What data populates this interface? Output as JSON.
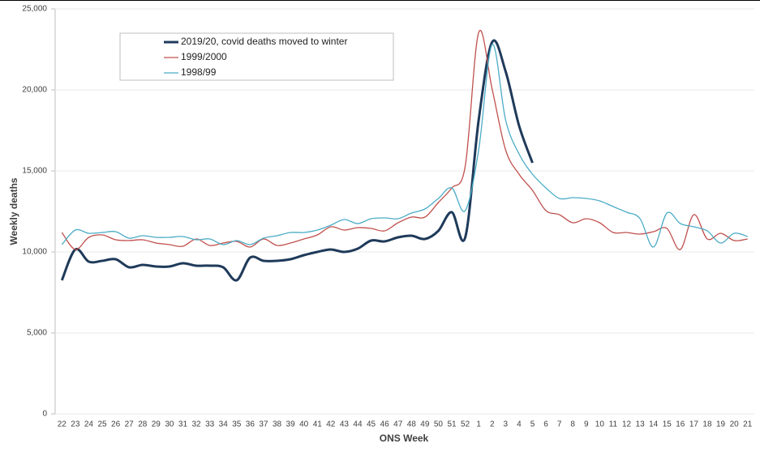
{
  "chart_data": {
    "type": "line",
    "xlabel": "ONS Week",
    "ylabel": "Weekly deaths",
    "categories": [
      "22",
      "23",
      "24",
      "25",
      "26",
      "27",
      "28",
      "29",
      "30",
      "31",
      "32",
      "33",
      "34",
      "35",
      "36",
      "37",
      "38",
      "39",
      "40",
      "41",
      "42",
      "43",
      "44",
      "45",
      "46",
      "47",
      "48",
      "49",
      "50",
      "51",
      "52",
      "1",
      "2",
      "3",
      "4",
      "5",
      "6",
      "7",
      "8",
      "9",
      "10",
      "11",
      "12",
      "13",
      "14",
      "15",
      "16",
      "17",
      "18",
      "19",
      "20",
      "21"
    ],
    "ylim": [
      0,
      25000
    ],
    "yticks": [
      0,
      {
        "value": 5000,
        "label": "5,000"
      },
      {
        "value": 10000,
        "label": "10,000"
      },
      {
        "value": 15000,
        "label": "15,000"
      },
      {
        "value": 20000,
        "label": "20,000"
      },
      {
        "value": 25000,
        "label": "25,000"
      }
    ],
    "series": [
      {
        "name": "2019/20, covid deaths moved to winter",
        "color": "#1f3a5a",
        "width": 3,
        "values": [
          8250,
          10150,
          9400,
          9450,
          9550,
          9050,
          9200,
          9100,
          9100,
          9300,
          9150,
          9150,
          9050,
          8250,
          9650,
          9450,
          9450,
          9550,
          9800,
          10000,
          10150,
          10000,
          10200,
          10700,
          10650,
          10900,
          11000,
          10800,
          11300,
          12450,
          10900,
          18150,
          22950,
          21150,
          17800,
          15500,
          null,
          null,
          null,
          null,
          null,
          null,
          null,
          null,
          null,
          null,
          null,
          null,
          null,
          null,
          null,
          null
        ]
      },
      {
        "name": "1999/2000",
        "color": "#c0504d",
        "width": 1.3,
        "values": [
          11200,
          10150,
          10900,
          11050,
          10750,
          10700,
          10750,
          10550,
          10450,
          10350,
          10800,
          10400,
          10550,
          10650,
          10300,
          10800,
          10400,
          10550,
          10800,
          11050,
          11550,
          11350,
          11500,
          11450,
          11300,
          11800,
          12150,
          12150,
          13050,
          13950,
          15300,
          23550,
          20050,
          16300,
          14800,
          13800,
          12550,
          12300,
          11800,
          12050,
          11800,
          11200,
          11200,
          11100,
          11250,
          11450,
          10150,
          12300,
          10800,
          11150,
          10700,
          10800
        ]
      },
      {
        "name": "1998/99",
        "color": "#4bacc6",
        "width": 1.3,
        "values": [
          10450,
          11350,
          11150,
          11200,
          11250,
          10850,
          11000,
          10900,
          10900,
          10950,
          10750,
          10800,
          10450,
          10700,
          10450,
          10850,
          11000,
          11200,
          11200,
          11350,
          11650,
          12000,
          11750,
          12050,
          12100,
          12050,
          12400,
          12650,
          13300,
          13950,
          12550,
          16300,
          22800,
          18150,
          16050,
          14800,
          13950,
          13300,
          13350,
          13300,
          13150,
          12800,
          12450,
          12050,
          10300,
          12400,
          11750,
          11550,
          11300,
          10550,
          11150,
          10950
        ]
      }
    ]
  }
}
